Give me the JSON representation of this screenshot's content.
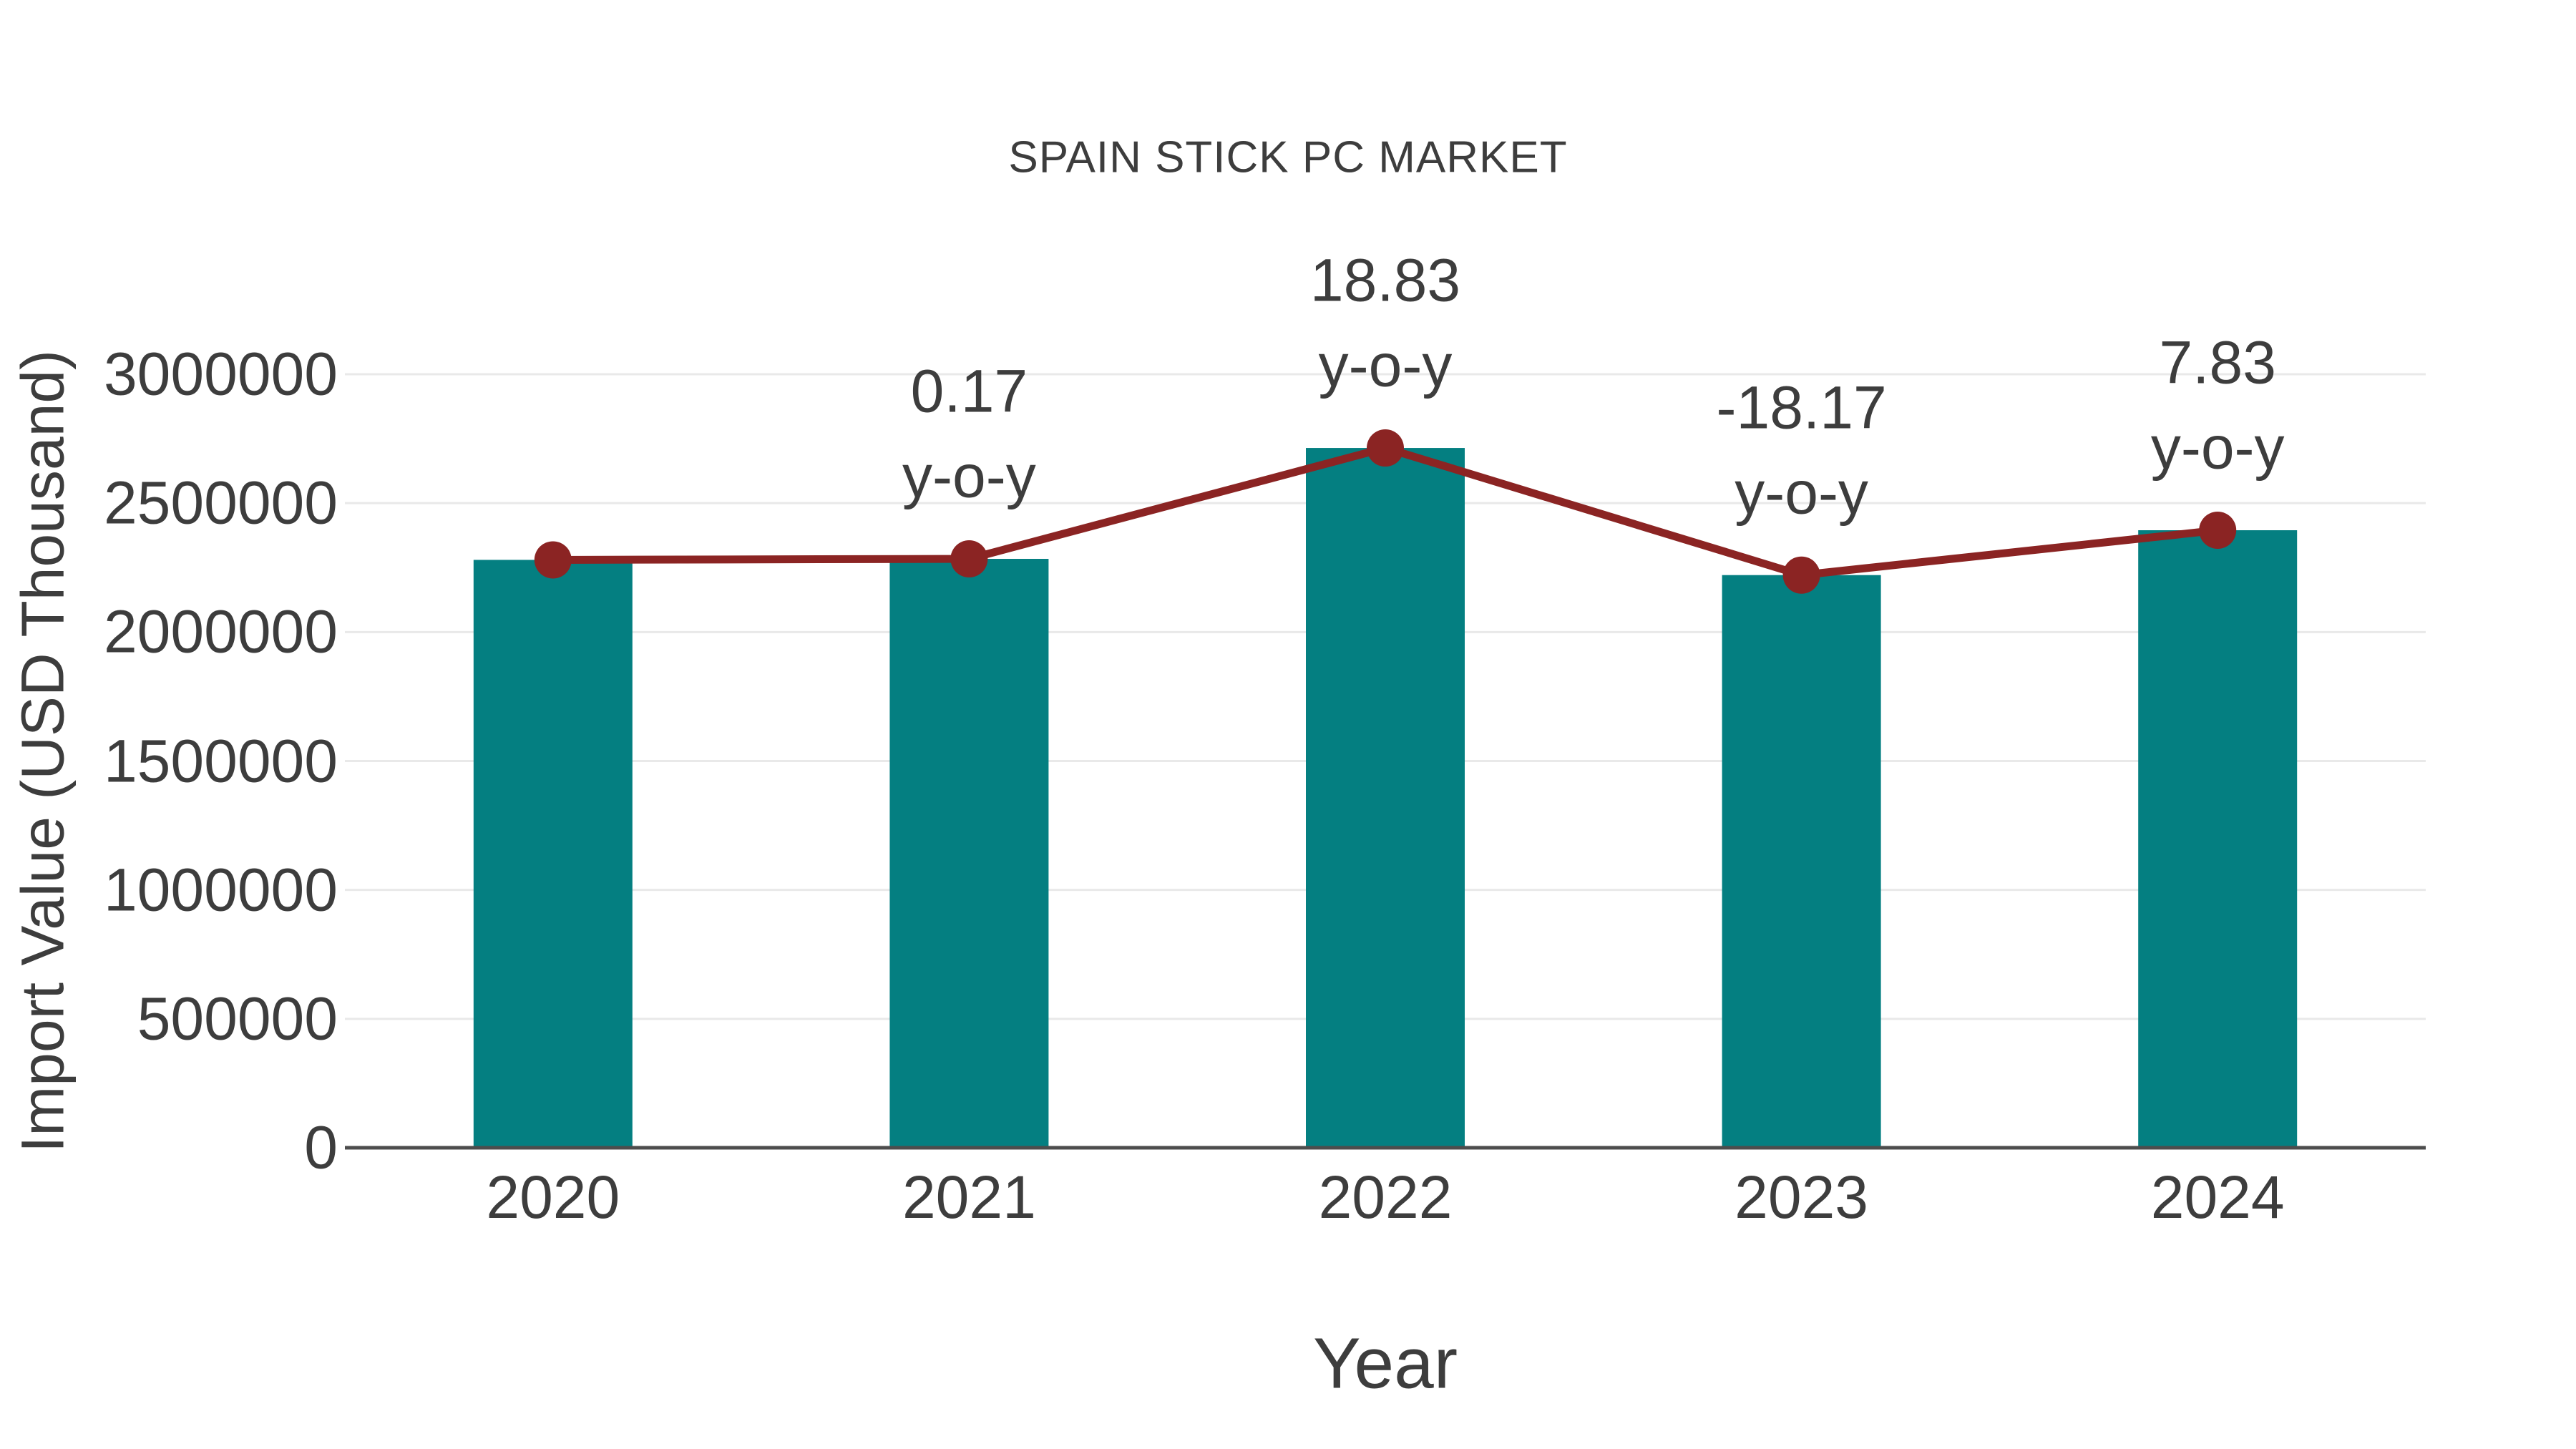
{
  "chart_data": {
    "type": "bar",
    "title": "SPAIN STICK PC MARKET",
    "xlabel": "Year",
    "ylabel": "Import Value (USD Thousand)",
    "categories": [
      "2020",
      "2021",
      "2022",
      "2023",
      "2024"
    ],
    "series": [
      {
        "name": "import-value-bars",
        "type": "bar",
        "values": [
          2280000,
          2284000,
          2714000,
          2221000,
          2395000
        ]
      },
      {
        "name": "yoy-trend-line",
        "type": "line",
        "values": [
          2280000,
          2284000,
          2714000,
          2221000,
          2395000
        ]
      }
    ],
    "yticks": [
      "0",
      "500000",
      "1000000",
      "1500000",
      "2000000",
      "2500000",
      "3000000"
    ],
    "ytick_values": [
      0,
      500000,
      1000000,
      1500000,
      2000000,
      2500000,
      3000000
    ],
    "ylim": [
      0,
      3000000
    ],
    "grid": "horizontal",
    "legend": "none",
    "annotations": [
      {
        "category": "2021",
        "value_label": "0.17",
        "suffix": "y-o-y"
      },
      {
        "category": "2022",
        "value_label": "18.83",
        "suffix": "y-o-y"
      },
      {
        "category": "2023",
        "value_label": "-18.17",
        "suffix": "y-o-y"
      },
      {
        "category": "2024",
        "value_label": "7.83",
        "suffix": "y-o-y"
      }
    ],
    "colors": {
      "bar": "#047F81",
      "line": "#8B2423",
      "marker": "#8B2423",
      "grid": "#e9e9e9",
      "axis": "#4d4d4d",
      "text": "#3d3d3d"
    }
  }
}
